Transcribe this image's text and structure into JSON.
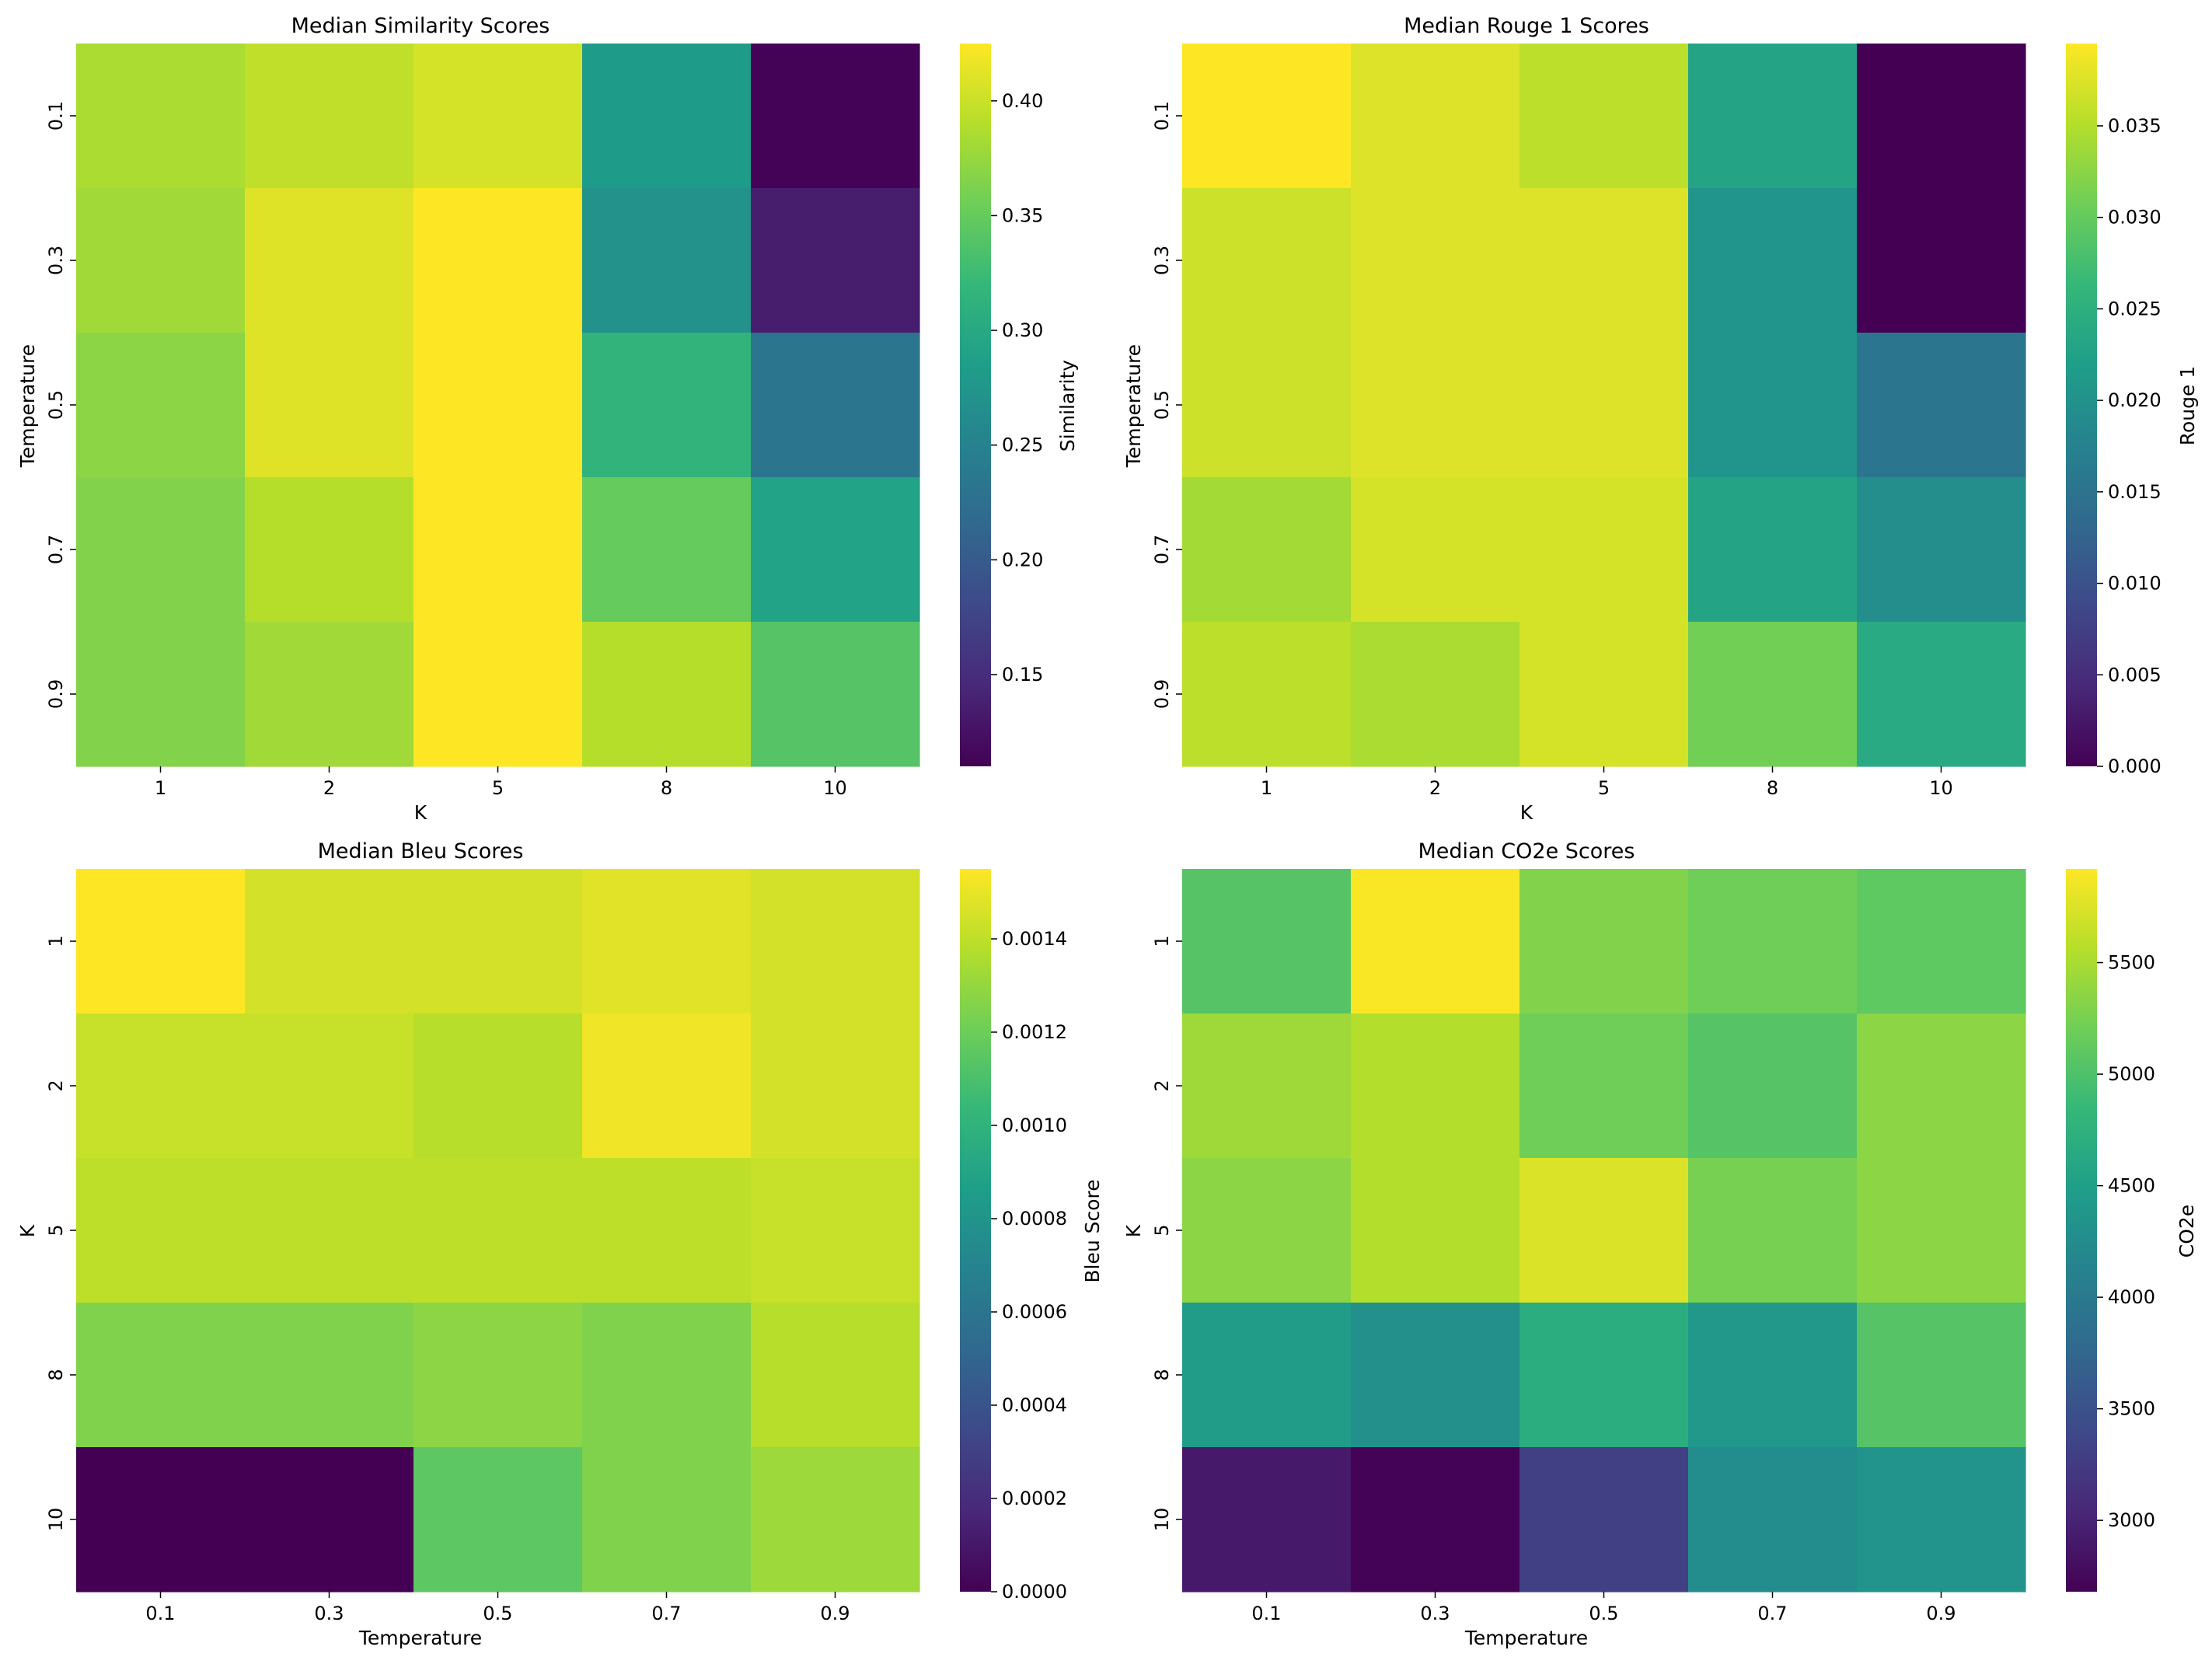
{
  "colormap": {
    "name": "viridis",
    "stops": [
      "#440154",
      "#482878",
      "#3e4989",
      "#31688e",
      "#26828e",
      "#1f9e89",
      "#35b779",
      "#6ece58",
      "#b5de2b",
      "#fde725"
    ]
  },
  "chart_data": [
    {
      "type": "heatmap",
      "title": "Median Similarity Scores",
      "xlabel": "K",
      "ylabel": "Temperature",
      "x_ticks": [
        "1",
        "2",
        "5",
        "8",
        "10"
      ],
      "y_ticks": [
        "0.1",
        "0.3",
        "0.5",
        "0.7",
        "0.9"
      ],
      "values": [
        [
          0.385,
          0.395,
          0.405,
          0.283,
          0.112
        ],
        [
          0.38,
          0.41,
          0.425,
          0.27,
          0.135
        ],
        [
          0.37,
          0.41,
          0.425,
          0.315,
          0.232
        ],
        [
          0.365,
          0.39,
          0.425,
          0.35,
          0.29
        ],
        [
          0.365,
          0.38,
          0.425,
          0.39,
          0.34
        ]
      ],
      "vmin": 0.11,
      "vmax": 0.425,
      "colorbar_label": "Similarity",
      "colorbar_ticks": [
        0.15,
        0.2,
        0.25,
        0.3,
        0.35,
        0.4
      ],
      "colorbar_tick_labels": [
        "0.15",
        "0.20",
        "0.25",
        "0.30",
        "0.35",
        "0.40"
      ]
    },
    {
      "type": "heatmap",
      "title": "Median Rouge 1 Scores",
      "xlabel": "K",
      "ylabel": "Temperature",
      "x_ticks": [
        "1",
        "2",
        "5",
        "8",
        "10"
      ],
      "y_ticks": [
        "0.1",
        "0.3",
        "0.5",
        "0.7",
        "0.9"
      ],
      "values": [
        [
          0.0395,
          0.0375,
          0.0355,
          0.023,
          0.0
        ],
        [
          0.0365,
          0.0375,
          0.0375,
          0.0205,
          0.0
        ],
        [
          0.0365,
          0.0375,
          0.0375,
          0.0205,
          0.0155
        ],
        [
          0.034,
          0.037,
          0.037,
          0.023,
          0.0195
        ],
        [
          0.0355,
          0.0345,
          0.037,
          0.031,
          0.024
        ]
      ],
      "vmin": 0.0,
      "vmax": 0.0395,
      "colorbar_label": "Rouge 1",
      "colorbar_ticks": [
        0.0,
        0.005,
        0.01,
        0.015,
        0.02,
        0.025,
        0.03,
        0.035
      ],
      "colorbar_tick_labels": [
        "0.000",
        "0.005",
        "0.010",
        "0.015",
        "0.020",
        "0.025",
        "0.030",
        "0.035"
      ]
    },
    {
      "type": "heatmap",
      "title": "Median Bleu Scores",
      "xlabel": "Temperature",
      "ylabel": "K",
      "x_ticks": [
        "0.1",
        "0.3",
        "0.5",
        "0.7",
        "0.9"
      ],
      "y_ticks": [
        "1",
        "2",
        "5",
        "8",
        "10"
      ],
      "values": [
        [
          0.00155,
          0.00145,
          0.00145,
          0.00148,
          0.00145
        ],
        [
          0.00142,
          0.00142,
          0.00138,
          0.00152,
          0.00145
        ],
        [
          0.0014,
          0.0014,
          0.0014,
          0.0014,
          0.00142
        ],
        [
          0.00125,
          0.00125,
          0.00128,
          0.00125,
          0.00138
        ],
        [
          0.0,
          0.0,
          0.00115,
          0.00125,
          0.00132
        ]
      ],
      "vmin": 0.0,
      "vmax": 0.00155,
      "colorbar_label": "Bleu Score",
      "colorbar_ticks": [
        0.0,
        0.0002,
        0.0004,
        0.0006,
        0.0008,
        0.001,
        0.0012,
        0.0014
      ],
      "colorbar_tick_labels": [
        "0.0000",
        "0.0002",
        "0.0004",
        "0.0006",
        "0.0008",
        "0.0010",
        "0.0012",
        "0.0014"
      ]
    },
    {
      "type": "heatmap",
      "title": "Median CO2e Scores",
      "xlabel": "Temperature",
      "ylabel": "K",
      "x_ticks": [
        "0.1",
        "0.3",
        "0.5",
        "0.7",
        "0.9"
      ],
      "y_ticks": [
        "1",
        "2",
        "5",
        "8",
        "10"
      ],
      "values": [
        [
          5050,
          5900,
          5300,
          5200,
          5100
        ],
        [
          5450,
          5550,
          5200,
          5050,
          5350
        ],
        [
          5350,
          5550,
          5750,
          5250,
          5350
        ],
        [
          4450,
          4300,
          4700,
          4400,
          5050
        ],
        [
          2900,
          2700,
          3300,
          4250,
          4350
        ]
      ],
      "vmin": 2680,
      "vmax": 5920,
      "colorbar_label": "CO2e",
      "colorbar_ticks": [
        3000,
        3500,
        4000,
        4500,
        5000,
        5500
      ],
      "colorbar_tick_labels": [
        "3000",
        "3500",
        "4000",
        "4500",
        "5000",
        "5500"
      ]
    }
  ]
}
